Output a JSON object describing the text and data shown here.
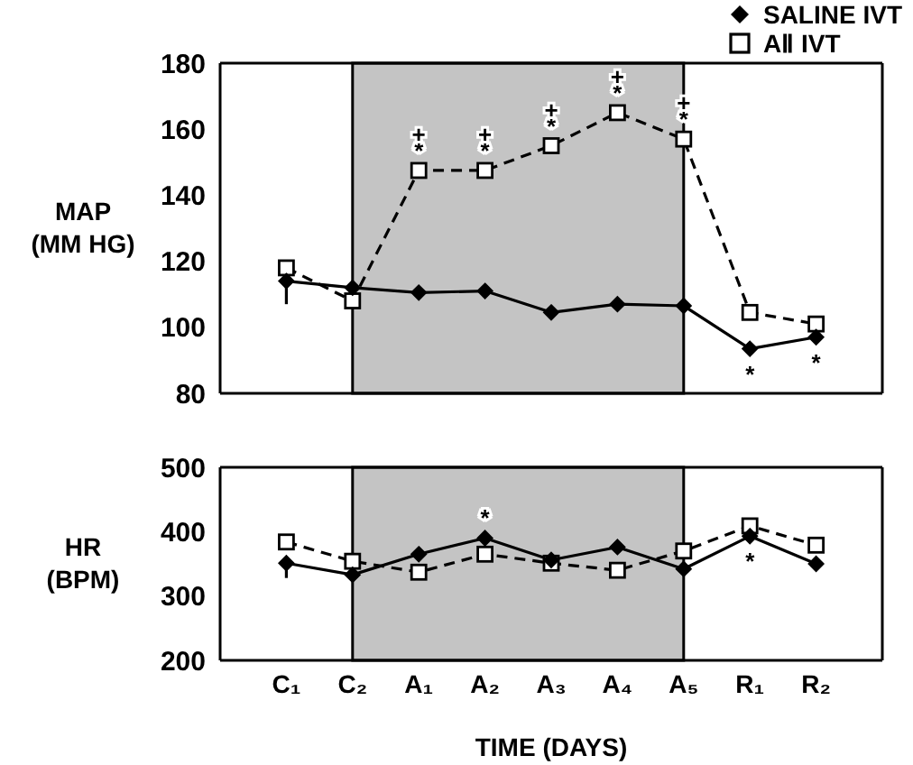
{
  "chart_data": [
    {
      "type": "line",
      "ylabel": "MAP (MM HG)",
      "categories": [
        "C₁",
        "C₂",
        "A₁",
        "A₂",
        "A₃",
        "A₄",
        "A₅",
        "R₁",
        "R₂"
      ],
      "ylim": [
        80,
        180
      ],
      "yticks": [
        80,
        100,
        120,
        140,
        160,
        180
      ],
      "tick_labels": "y",
      "legend": "top right",
      "series": [
        {
          "name": "SALINE IVT",
          "color": "#000000",
          "marker": "diamond",
          "line_style": "solid",
          "values": [
            114,
            112,
            110.5,
            111,
            104.5,
            107,
            106.5,
            93.5,
            97
          ],
          "errors": [
            [
              107,
              114
            ],
            null,
            null,
            null,
            null,
            null,
            null,
            null,
            null
          ]
        },
        {
          "name": "AⅡ IVT",
          "color": "#000000",
          "marker": "square",
          "line_style": "dashed",
          "values": [
            118,
            108,
            147.5,
            147.5,
            155,
            165,
            157,
            104.5,
            101
          ]
        }
      ],
      "bands": [
        {
          "axis": "x",
          "from": "C₂",
          "to": "A₅",
          "color": "#c4c4c4"
        }
      ],
      "annotations": [
        {
          "text": "*",
          "x": "A₁",
          "y": 147.5
        },
        {
          "text": "+",
          "x": "A₁",
          "y": 147.5
        },
        {
          "text": "*",
          "x": "A₂",
          "y": 147.5
        },
        {
          "text": "+",
          "x": "A₂",
          "y": 147.5
        },
        {
          "text": "*",
          "x": "A₃",
          "y": 155
        },
        {
          "text": "+",
          "x": "A₃",
          "y": 155
        },
        {
          "text": "*",
          "x": "A₄",
          "y": 165
        },
        {
          "text": "+",
          "x": "A₄",
          "y": 165
        },
        {
          "text": "*",
          "x": "A₅",
          "y": 157
        },
        {
          "text": "+",
          "x": "A₅",
          "y": 157
        },
        {
          "text": "*",
          "x": "R₁",
          "y": 93.5
        },
        {
          "text": "*",
          "x": "R₂",
          "y": 97
        }
      ]
    },
    {
      "type": "line",
      "ylabel": "HR (BPM)",
      "xlabel": "TIME (DAYS)",
      "categories": [
        "C₁",
        "C₂",
        "A₁",
        "A₂",
        "A₃",
        "A₄",
        "A₅",
        "R₁",
        "R₂"
      ],
      "ylim": [
        200,
        500
      ],
      "yticks": [
        200,
        300,
        400,
        500
      ],
      "series": [
        {
          "color": "#000000",
          "marker": "diamond",
          "line_style": "solid",
          "values": [
            351,
            333,
            365,
            390,
            356,
            376,
            342,
            393,
            350
          ],
          "errors": [
            [
              328,
              351
            ],
            null,
            null,
            null,
            null,
            null,
            null,
            null,
            null
          ]
        },
        {
          "color": "#000000",
          "marker": "square",
          "line_style": "dashed",
          "values": [
            384,
            354,
            337,
            365,
            351,
            340,
            370,
            409,
            379
          ]
        }
      ],
      "bands": [
        {
          "axis": "x",
          "from": "C₂",
          "to": "A₅",
          "color": "#c4c4c4"
        }
      ],
      "annotations": [
        {
          "text": "*",
          "x": "A₂",
          "y": 390
        },
        {
          "text": "*",
          "x": "R₁",
          "y": 393
        }
      ]
    }
  ]
}
